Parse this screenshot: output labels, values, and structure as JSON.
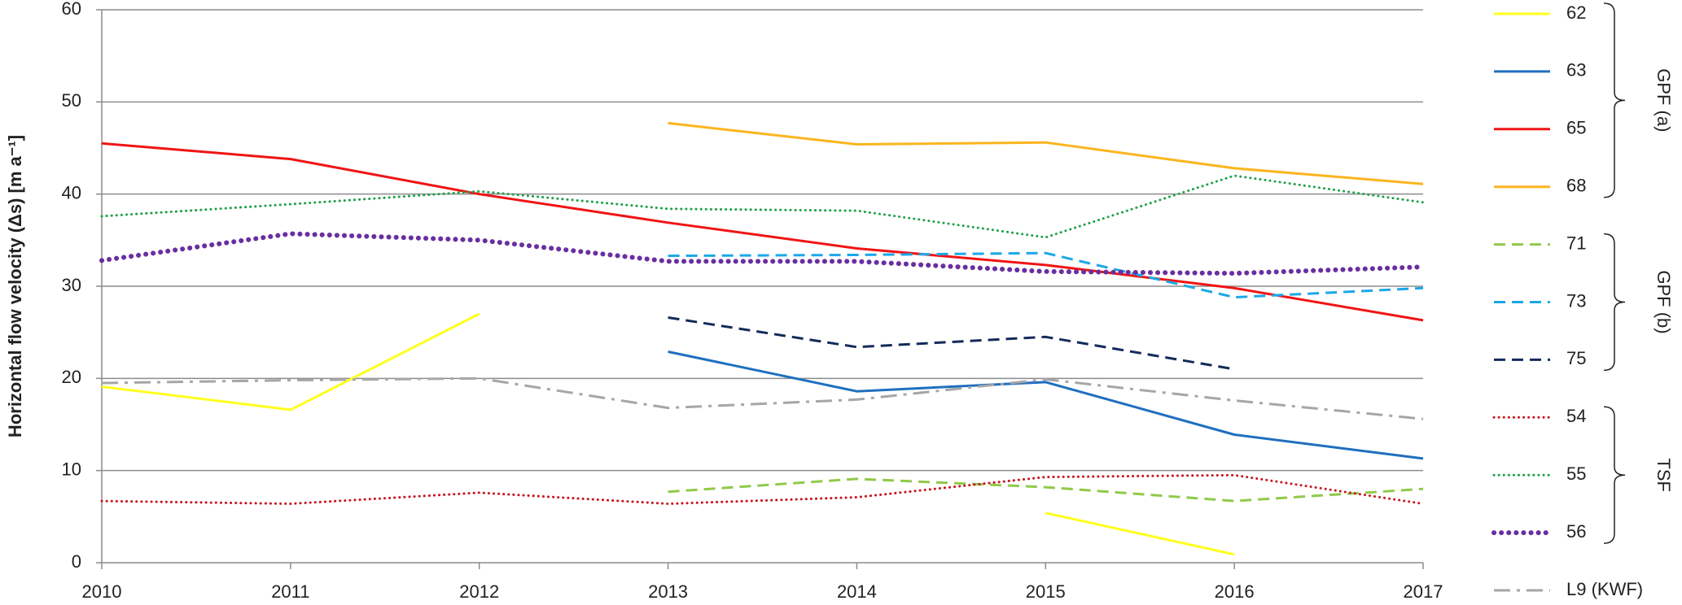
{
  "chart_data": {
    "type": "line",
    "y_label": "Horizontal flow velocity (Δs) [m a⁻¹]",
    "x": [
      2010,
      2011,
      2012,
      2013,
      2014,
      2015,
      2016,
      2017
    ],
    "xlim": [
      2010,
      2017
    ],
    "xticks": [
      2010,
      2011,
      2012,
      2013,
      2014,
      2015,
      2016,
      2017
    ],
    "ylim": [
      0,
      60
    ],
    "yticks": [
      0,
      10,
      20,
      30,
      40,
      50,
      60
    ],
    "grid": true,
    "legend": "right",
    "series": [
      {
        "name": "62",
        "group": "GPF (a)",
        "color": "#ffff1e",
        "style": "solid",
        "values": [
          19.1,
          16.6,
          27.0,
          null,
          null,
          5.4,
          0.9,
          null
        ]
      },
      {
        "name": "63",
        "group": "GPF (a)",
        "color": "#1f6fbf",
        "style": "solid",
        "values": [
          null,
          null,
          null,
          22.9,
          18.6,
          19.6,
          13.9,
          11.3
        ]
      },
      {
        "name": "65",
        "group": "GPF (a)",
        "color": "#f01414",
        "style": "solid",
        "values": [
          45.5,
          43.8,
          40.0,
          36.9,
          34.1,
          32.3,
          29.8,
          26.3
        ]
      },
      {
        "name": "68",
        "group": "GPF (a)",
        "color": "#fbb51e",
        "style": "solid",
        "values": [
          null,
          null,
          null,
          47.7,
          45.4,
          45.6,
          42.8,
          41.1
        ]
      },
      {
        "name": "71",
        "group": "GPF (b)",
        "color": "#8fca4a",
        "style": "dashed",
        "values": [
          null,
          null,
          null,
          7.7,
          9.1,
          8.2,
          6.7,
          8.0
        ]
      },
      {
        "name": "73",
        "group": "GPF (b)",
        "color": "#1aa8e8",
        "style": "dashed",
        "values": [
          null,
          null,
          null,
          33.3,
          33.4,
          33.6,
          28.8,
          29.8
        ]
      },
      {
        "name": "75",
        "group": "GPF (b)",
        "color": "#142a5a",
        "style": "dashed",
        "values": [
          null,
          null,
          null,
          26.6,
          23.4,
          24.5,
          21.0,
          null
        ]
      },
      {
        "name": "54",
        "group": "TSF",
        "color": "#c8141e",
        "style": "dotted",
        "values": [
          6.7,
          6.4,
          7.6,
          6.4,
          7.1,
          9.3,
          9.5,
          6.4
        ]
      },
      {
        "name": "55",
        "group": "TSF",
        "color": "#1ea04a",
        "style": "dotted",
        "values": [
          37.6,
          38.9,
          40.3,
          38.4,
          38.2,
          35.3,
          42.0,
          39.1
        ]
      },
      {
        "name": "56",
        "group": "TSF",
        "color": "#6a2ea0",
        "style": "heavy-dotted",
        "values": [
          32.8,
          35.7,
          35.0,
          32.7,
          32.7,
          31.6,
          31.4,
          32.1
        ]
      },
      {
        "name": "L9 (KWF)",
        "color": "#a6a6a6",
        "style": "dash-dot",
        "values": [
          19.5,
          19.8,
          20.0,
          16.8,
          17.7,
          19.9,
          17.6,
          15.6
        ]
      }
    ]
  }
}
